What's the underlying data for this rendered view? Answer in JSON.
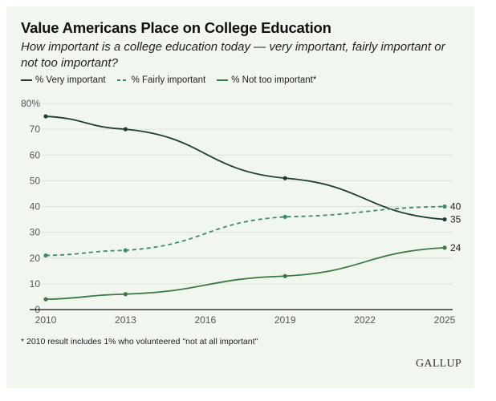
{
  "chart_data": {
    "type": "line",
    "title": "Value Americans Place on College Education",
    "subtitle": "How important is a college education today — very important, fairly important or not too important?",
    "xlabel": "",
    "ylabel": "",
    "x": [
      2010,
      2013,
      2019,
      2025
    ],
    "x_ticks": [
      "2010",
      "2013",
      "2016",
      "2019",
      "2022",
      "2025"
    ],
    "x_tick_values": [
      2010,
      2013,
      2016,
      2019,
      2022,
      2025
    ],
    "xlim": [
      2010,
      2025
    ],
    "y_ticks": [
      "0",
      "10",
      "20",
      "30",
      "40",
      "50",
      "60",
      "70",
      "80%"
    ],
    "y_tick_values": [
      0,
      10,
      20,
      30,
      40,
      50,
      60,
      70,
      80
    ],
    "ylim": [
      0,
      80
    ],
    "grid": true,
    "legend_position": "top-left",
    "series": [
      {
        "name": "% Very important",
        "values": [
          75,
          70,
          51,
          35
        ],
        "color": "#1f3d33",
        "style": "solid",
        "end_label": "35"
      },
      {
        "name": "% Fairly important",
        "values": [
          21,
          23,
          36,
          40
        ],
        "color": "#3f8a6c",
        "style": "dashed",
        "end_label": "40"
      },
      {
        "name": "% Not too important*",
        "values": [
          4,
          6,
          13,
          24
        ],
        "color": "#3a7a45",
        "style": "solid",
        "end_label": "24"
      }
    ],
    "footnote": "* 2010 result includes 1% who volunteered \"not at all important\"",
    "source": "GALLUP"
  }
}
